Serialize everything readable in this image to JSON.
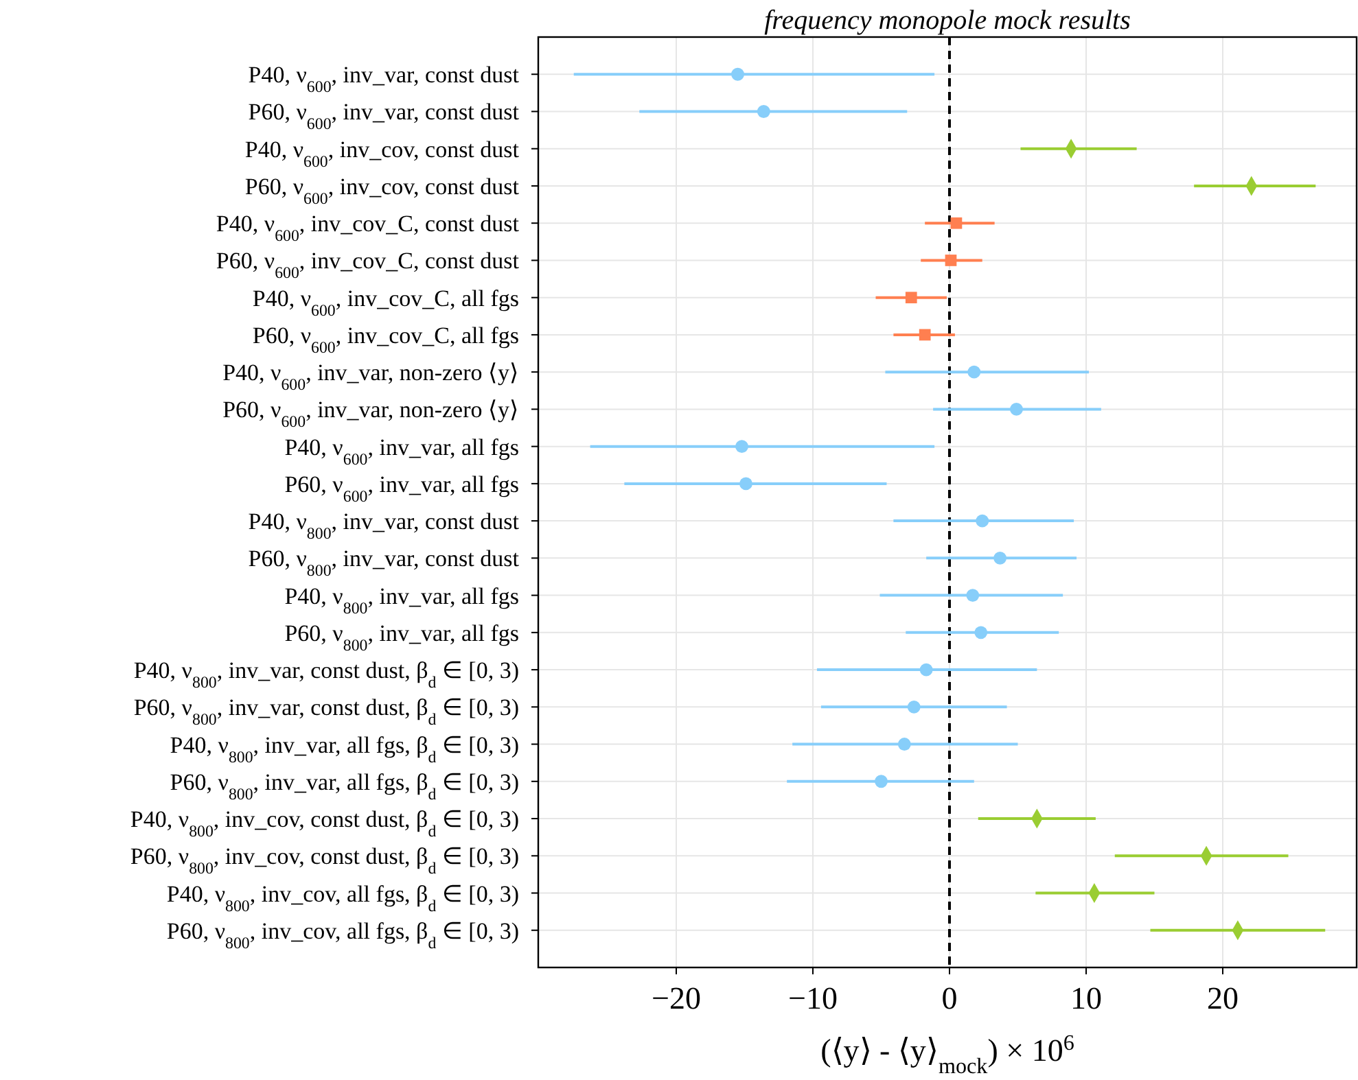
{
  "chart_data": {
    "type": "scatter",
    "orientation": "horizontal",
    "title": "frequency monopole mock results",
    "xlabel": "(⟨y⟩ - ⟨y⟩$_{mock}$) × 10$^{6}$",
    "categories": [
      "P40, ν$_{600}$, inv_var, const dust",
      "P60, ν$_{600}$, inv_var, const dust",
      "P40, ν$_{600}$, inv_cov, const dust",
      "P60, ν$_{600}$, inv_cov, const dust",
      "P40, ν$_{600}$, inv_cov_C, const dust",
      "P60, ν$_{600}$, inv_cov_C, const dust",
      "P40, ν$_{600}$, inv_cov_C, all fgs",
      "P60, ν$_{600}$, inv_cov_C, all fgs",
      "P40, ν$_{600}$, inv_var, non-zero ⟨y⟩",
      "P60, ν$_{600}$, inv_var, non-zero ⟨y⟩",
      "P40, ν$_{600}$, inv_var, all fgs",
      "P60, ν$_{600}$, inv_var, all fgs",
      "P40, ν$_{800}$, inv_var, const dust",
      "P60, ν$_{800}$, inv_var, const dust",
      "P40, ν$_{800}$, inv_var, all fgs",
      "P60, ν$_{800}$, inv_var, all fgs",
      "P40, ν$_{800}$, inv_var, const dust, β$_{d}$ ∈ [0, 3)",
      "P60, ν$_{800}$, inv_var, const dust, β$_{d}$ ∈ [0, 3)",
      "P40, ν$_{800}$, inv_var, all fgs, β$_{d}$ ∈ [0, 3)",
      "P60, ν$_{800}$, inv_var, all fgs, β$_{d}$ ∈ [0, 3)",
      "P40, ν$_{800}$, inv_cov, const dust, β$_{d}$ ∈ [0, 3)",
      "P60, ν$_{800}$, inv_cov, const dust, β$_{d}$ ∈ [0, 3)",
      "P40, ν$_{800}$, inv_cov, all fgs, β$_{d}$ ∈ [0, 3)",
      "P60, ν$_{800}$, inv_cov, all fgs, β$_{d}$ ∈ [0, 3)"
    ],
    "series": [
      {
        "color": "#87cefa",
        "marker": "circle",
        "values": [
          -15.5,
          -13.6,
          null,
          null,
          null,
          null,
          null,
          null,
          1.8,
          4.9,
          -15.2,
          -14.9,
          2.4,
          3.7,
          1.7,
          2.3,
          -1.7,
          -2.6,
          -3.3,
          -5.0,
          null,
          null,
          null,
          null
        ],
        "errors": [
          [
            -27.5,
            -1.1
          ],
          [
            -22.7,
            -3.1
          ],
          null,
          null,
          null,
          null,
          null,
          null,
          [
            -4.7,
            10.2
          ],
          [
            -1.2,
            11.1
          ],
          [
            -26.3,
            -1.1
          ],
          [
            -23.8,
            -4.6
          ],
          [
            -4.1,
            9.1
          ],
          [
            -1.7,
            9.3
          ],
          [
            -5.1,
            8.3
          ],
          [
            -3.2,
            8.0
          ],
          [
            -9.7,
            6.4
          ],
          [
            -9.4,
            4.2
          ],
          [
            -11.5,
            5.0
          ],
          [
            -11.9,
            1.8
          ],
          null,
          null,
          null,
          null
        ]
      },
      {
        "color": "#9acd32",
        "marker": "diamond",
        "values": [
          null,
          null,
          8.9,
          22.1,
          null,
          null,
          null,
          null,
          null,
          null,
          null,
          null,
          null,
          null,
          null,
          null,
          null,
          null,
          null,
          null,
          6.4,
          18.8,
          10.6,
          21.1
        ],
        "errors": [
          null,
          null,
          [
            5.2,
            13.7
          ],
          [
            17.9,
            26.8
          ],
          null,
          null,
          null,
          null,
          null,
          null,
          null,
          null,
          null,
          null,
          null,
          null,
          null,
          null,
          null,
          null,
          [
            2.1,
            10.7
          ],
          [
            12.1,
            24.8
          ],
          [
            6.3,
            15.0
          ],
          [
            14.7,
            27.5
          ]
        ]
      },
      {
        "color": "#ff7f50",
        "marker": "square",
        "values": [
          null,
          null,
          null,
          null,
          0.5,
          0.1,
          -2.8,
          -1.8,
          null,
          null,
          null,
          null,
          null,
          null,
          null,
          null,
          null,
          null,
          null,
          null,
          null,
          null,
          null,
          null
        ],
        "errors": [
          null,
          null,
          null,
          null,
          [
            -1.8,
            3.3
          ],
          [
            -2.1,
            2.4
          ],
          [
            -5.4,
            -0.2
          ],
          [
            -4.1,
            0.4
          ],
          null,
          null,
          null,
          null,
          null,
          null,
          null,
          null,
          null,
          null,
          null,
          null,
          null,
          null,
          null,
          null
        ]
      }
    ],
    "xlim": [
      -30.1,
      29.8
    ],
    "xticks": [
      -20,
      -10,
      0,
      10,
      20
    ],
    "grid": true,
    "ref_lines": [
      {
        "axis": "x",
        "value": 0,
        "color": "#000000",
        "line_style": "dashed"
      }
    ]
  }
}
